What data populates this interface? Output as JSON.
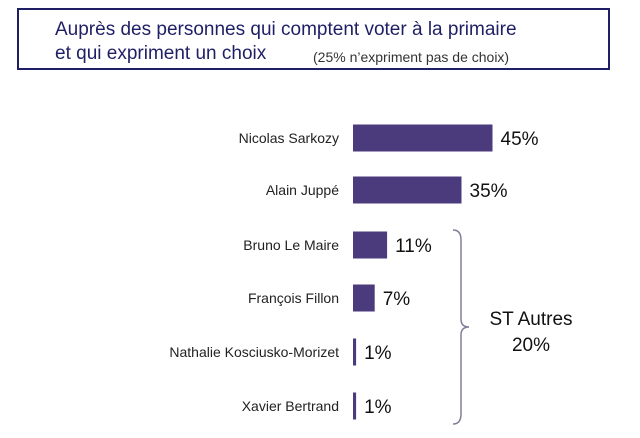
{
  "header": {
    "title_line1": "Auprès des personnes qui comptent voter à la primaire",
    "title_line2": "et qui expriment un choix",
    "note": "(25% n’expriment pas de choix)"
  },
  "chart_data": {
    "type": "bar",
    "orientation": "horizontal",
    "categories": [
      "Nicolas Sarkozy",
      "Alain Juppé",
      "Bruno Le Maire",
      "François Fillon",
      "Nathalie Kosciusko-Morizet",
      "Xavier Bertrand"
    ],
    "values": [
      45,
      35,
      11,
      7,
      1,
      1
    ],
    "value_labels": [
      "45%",
      "35%",
      "11%",
      "7%",
      "1%",
      "1%"
    ],
    "unit": "%",
    "bar_color": "#4b3b7c",
    "title": "Auprès des personnes qui comptent voter à la primaire et qui expriment un choix",
    "annotation": {
      "label_line1": "ST Autres",
      "label_line2": "20%",
      "covers": [
        "Bruno Le Maire",
        "François Fillon",
        "Nathalie Kosciusko-Morizet",
        "Xavier Bertrand"
      ]
    }
  }
}
